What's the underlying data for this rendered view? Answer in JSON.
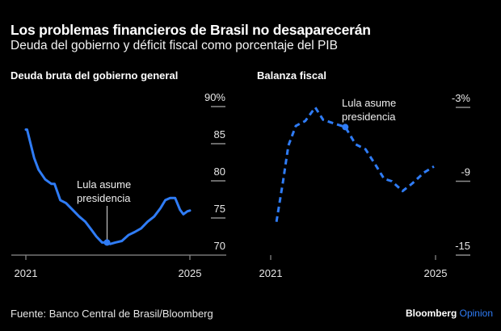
{
  "title": "Los problemas financieros de Brasil no desaparecerán",
  "subtitle": "Deuda del gobierno y déficit fiscal como porcentaje del PIB",
  "source": "Fuente: Banco Central de Brasil/Bloomberg",
  "brand": {
    "name": "Bloomberg",
    "suffix": "Opinion",
    "accent": "#2f7cf6"
  },
  "colors": {
    "line": "#2f7cf6",
    "axis": "#8c8c8c",
    "text": "#ffffff"
  },
  "chart_data": [
    {
      "type": "line",
      "title": "Deuda bruta del gobierno general",
      "xlabel": "",
      "ylabel": "",
      "x_ticks": [
        "2021",
        "2025"
      ],
      "x_range": [
        2021.0,
        2025.0
      ],
      "y_ticks": [
        "90%",
        "85",
        "80",
        "75",
        "70"
      ],
      "y_tick_values": [
        90,
        85,
        80,
        75,
        70
      ],
      "ylim": [
        70,
        90
      ],
      "line_style": "solid",
      "annotation": {
        "text_lines": [
          "Lula asume",
          "presidencia"
        ],
        "x": 2022.98,
        "y": 71.7
      },
      "series": [
        {
          "name": "Deuda bruta",
          "x": [
            2021.0,
            2021.03,
            2021.2,
            2021.31,
            2021.47,
            2021.62,
            2021.7,
            2021.84,
            2021.98,
            2022.14,
            2022.3,
            2022.45,
            2022.6,
            2022.72,
            2022.86,
            2022.98,
            2023.06,
            2023.18,
            2023.34,
            2023.5,
            2023.65,
            2023.81,
            2023.97,
            2024.13,
            2024.28,
            2024.4,
            2024.52,
            2024.64,
            2024.76,
            2024.84,
            2024.94,
            2025.0
          ],
          "values": [
            86.9,
            86.9,
            83.1,
            81.5,
            80.2,
            79.6,
            79.6,
            77.4,
            77.0,
            76.1,
            75.2,
            74.5,
            73.4,
            72.5,
            71.7,
            71.7,
            71.5,
            71.7,
            71.9,
            72.7,
            73.1,
            73.6,
            74.5,
            75.2,
            76.3,
            77.4,
            77.7,
            77.7,
            76.1,
            75.5,
            75.9,
            76.0
          ]
        }
      ]
    },
    {
      "type": "line",
      "title": "Balanza fiscal",
      "xlabel": "",
      "ylabel": "",
      "x_ticks": [
        "2021",
        "2025"
      ],
      "x_range": [
        2021.0,
        2025.0
      ],
      "y_ticks": [
        "-3%",
        "-9",
        "-15"
      ],
      "y_tick_values": [
        -3,
        -9,
        -15
      ],
      "ylim": [
        -15,
        -3
      ],
      "line_style": "dashed",
      "annotation": {
        "text_lines": [
          "Lula asume",
          "presidencia"
        ],
        "x": 2022.81,
        "y": -4.6
      },
      "series": [
        {
          "name": "Balanza fiscal",
          "x": [
            2021.14,
            2021.3,
            2021.43,
            2021.61,
            2021.84,
            2022.08,
            2022.27,
            2022.53,
            2022.81,
            2023.06,
            2023.3,
            2023.55,
            2023.75,
            2023.94,
            2024.2,
            2024.43,
            2024.72,
            2024.96
          ],
          "values": [
            -12.3,
            -9.0,
            -6.1,
            -4.5,
            -4.1,
            -3.0,
            -4.0,
            -4.3,
            -4.6,
            -6.0,
            -6.4,
            -7.7,
            -8.8,
            -9.0,
            -9.8,
            -9.2,
            -8.3,
            -7.8
          ]
        }
      ]
    }
  ]
}
